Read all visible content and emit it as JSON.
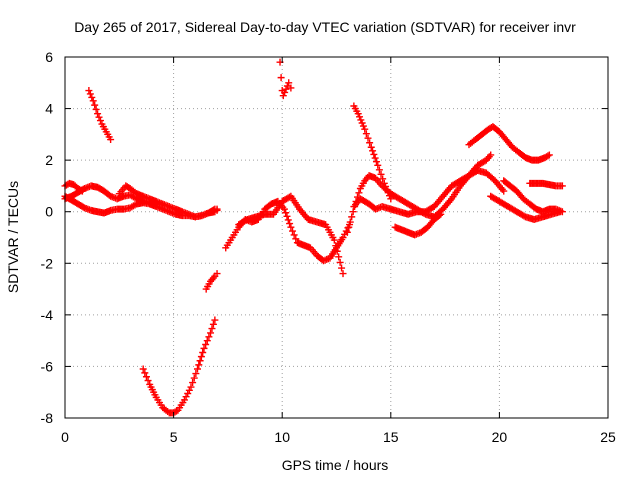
{
  "chart_data": {
    "type": "scatter",
    "title": "Day 265 of 2017, Sidereal Day-to-day VTEC variation (SDTVAR) for receiver invr",
    "xlabel": "GPS time / hours",
    "ylabel": "SDTVAR / TECUs",
    "xlim": [
      0,
      25
    ],
    "ylim": [
      -8,
      6
    ],
    "xticks": [
      0,
      5,
      10,
      15,
      20,
      25
    ],
    "yticks": [
      -8,
      -6,
      -4,
      -2,
      0,
      2,
      4,
      6
    ],
    "grid": true,
    "marker": "+",
    "series_color": "#ff0000",
    "series": [
      {
        "x": [
          0.0,
          0.3,
          0.6,
          0.9,
          1.2,
          1.5,
          1.8,
          2.1,
          2.4,
          2.7,
          3.0,
          3.3,
          3.6,
          3.9,
          4.2,
          4.5,
          4.8,
          5.1,
          5.4,
          5.7,
          6.0,
          6.3,
          6.6,
          6.9,
          7.0
        ],
        "y": [
          0.6,
          0.45,
          0.3,
          0.15,
          0.05,
          0.0,
          -0.05,
          0.05,
          0.1,
          0.1,
          0.15,
          0.3,
          0.35,
          0.3,
          0.2,
          0.1,
          0.0,
          -0.1,
          -0.15,
          -0.15,
          -0.2,
          -0.15,
          -0.05,
          0.0,
          0.05
        ]
      },
      {
        "x": [
          0.0,
          0.3,
          0.6,
          0.9,
          1.2,
          1.5,
          1.8,
          2.1,
          2.4,
          2.7,
          3.0,
          3.3,
          3.6,
          3.9,
          4.2,
          4.5,
          4.8,
          5.1,
          5.4,
          5.7,
          6.0,
          6.3,
          6.6,
          6.9,
          7.0
        ],
        "y": [
          0.5,
          0.6,
          0.75,
          0.9,
          1.0,
          0.95,
          0.8,
          0.6,
          0.5,
          0.6,
          0.65,
          0.5,
          0.4,
          0.35,
          0.3,
          0.3,
          0.2,
          0.1,
          0.0,
          -0.1,
          -0.2,
          -0.15,
          -0.05,
          0.1,
          0.1
        ]
      },
      {
        "x": [
          0.0,
          0.2,
          0.4,
          0.6,
          0.8
        ],
        "y": [
          1.0,
          1.1,
          1.05,
          0.9,
          0.8
        ]
      },
      {
        "x": [
          1.1,
          1.3,
          1.5,
          1.7,
          1.9,
          2.1
        ],
        "y": [
          4.7,
          4.3,
          3.8,
          3.4,
          3.1,
          2.8
        ]
      },
      {
        "x": [
          2.5,
          2.8,
          3.0,
          3.3,
          3.6,
          3.9,
          4.2,
          4.5
        ],
        "y": [
          0.7,
          1.0,
          0.9,
          0.7,
          0.6,
          0.5,
          0.4,
          0.3
        ]
      },
      {
        "x": [
          3.6,
          3.9,
          4.2,
          4.5,
          4.8,
          5.0,
          5.2,
          5.5,
          5.8,
          6.1,
          6.4,
          6.7,
          6.9
        ],
        "y": [
          -6.1,
          -6.7,
          -7.2,
          -7.6,
          -7.8,
          -7.8,
          -7.7,
          -7.3,
          -6.8,
          -6.1,
          -5.3,
          -4.7,
          -4.2
        ]
      },
      {
        "x": [
          6.5,
          6.7,
          6.9,
          7.0
        ],
        "y": [
          -3.0,
          -2.7,
          -2.5,
          -2.4
        ]
      },
      {
        "x": [
          7.4,
          7.7,
          8.0,
          8.3,
          8.6,
          8.9,
          9.2,
          9.5,
          9.8,
          10.1,
          10.4,
          10.7,
          11.0,
          11.3,
          11.6,
          11.9,
          12.2,
          12.5,
          12.8,
          13.1
        ],
        "y": [
          -1.4,
          -1.0,
          -0.6,
          -0.3,
          -0.4,
          -0.3,
          0.1,
          0.3,
          0.4,
          0.1,
          -0.6,
          -1.2,
          -1.3,
          -1.4,
          -1.7,
          -1.9,
          -1.8,
          -1.4,
          -1.0,
          -0.5
        ]
      },
      {
        "x": [
          8.0,
          8.4,
          8.8,
          9.2,
          9.6,
          10.0,
          10.4,
          10.8,
          11.2,
          11.6,
          12.0,
          12.4,
          12.8
        ],
        "y": [
          -0.5,
          -0.3,
          -0.2,
          -0.1,
          -0.1,
          0.4,
          0.6,
          0.1,
          -0.3,
          -0.4,
          -0.5,
          -1.1,
          -2.4
        ]
      },
      {
        "x": [
          9.9,
          9.95,
          10.0,
          10.05,
          10.3,
          10.4
        ],
        "y": [
          5.8,
          5.2,
          4.7,
          4.5,
          5.0,
          4.8
        ]
      },
      {
        "x": [
          13.0,
          13.2,
          13.4,
          13.6,
          13.8,
          14.0,
          14.3,
          14.6,
          15.0,
          15.4,
          15.8,
          16.2,
          16.6,
          17.0,
          17.4,
          17.8,
          18.2,
          18.6,
          19.0,
          19.4,
          19.6
        ],
        "y": [
          -0.8,
          -0.2,
          0.4,
          0.9,
          1.2,
          1.4,
          1.3,
          1.0,
          0.7,
          0.5,
          0.3,
          0.1,
          -0.1,
          -0.2,
          0.1,
          0.5,
          1.0,
          1.4,
          1.8,
          2.0,
          2.2
        ]
      },
      {
        "x": [
          13.3,
          13.6,
          14.0,
          14.3,
          14.6,
          15.0,
          15.4,
          15.8,
          16.2,
          16.6,
          17.0,
          17.4,
          17.8,
          18.2,
          18.6,
          19.0,
          19.4,
          19.8,
          20.2
        ],
        "y": [
          0.2,
          0.5,
          0.3,
          0.1,
          0.2,
          0.1,
          0.0,
          -0.1,
          0.0,
          0.0,
          0.2,
          0.6,
          1.0,
          1.2,
          1.4,
          1.6,
          1.5,
          1.2,
          0.8
        ]
      },
      {
        "x": [
          13.3,
          13.5,
          13.8,
          14.1,
          14.4,
          14.7,
          15.0
        ],
        "y": [
          4.1,
          3.8,
          3.2,
          2.5,
          1.8,
          1.1,
          0.5
        ]
      },
      {
        "x": [
          15.2,
          15.5,
          15.8,
          16.1,
          16.4,
          16.7,
          17.0,
          17.3
        ],
        "y": [
          -0.6,
          -0.7,
          -0.8,
          -0.9,
          -0.8,
          -0.6,
          -0.3,
          -0.1
        ]
      },
      {
        "x": [
          18.6,
          18.9,
          19.2,
          19.5,
          19.7,
          20.0,
          20.3,
          20.6,
          20.9,
          21.2,
          21.5,
          21.8,
          22.1,
          22.3
        ],
        "y": [
          2.6,
          2.8,
          3.0,
          3.2,
          3.3,
          3.1,
          2.8,
          2.5,
          2.3,
          2.1,
          2.0,
          2.0,
          2.1,
          2.2
        ]
      },
      {
        "x": [
          20.2,
          20.5,
          20.8,
          21.1,
          21.4,
          21.7,
          22.0,
          22.3,
          22.6,
          22.9
        ],
        "y": [
          1.2,
          1.0,
          0.8,
          0.5,
          0.3,
          0.1,
          0.0,
          0.1,
          0.1,
          0.0
        ]
      },
      {
        "x": [
          19.6,
          20.0,
          20.4,
          20.8,
          21.2,
          21.6,
          22.0,
          22.4,
          22.8
        ],
        "y": [
          0.6,
          0.4,
          0.2,
          0.0,
          -0.2,
          -0.3,
          -0.2,
          -0.1,
          0.0
        ]
      },
      {
        "x": [
          21.4,
          21.7,
          22.0,
          22.3,
          22.6,
          22.9
        ],
        "y": [
          1.1,
          1.1,
          1.1,
          1.05,
          1.0,
          1.0
        ]
      }
    ]
  }
}
